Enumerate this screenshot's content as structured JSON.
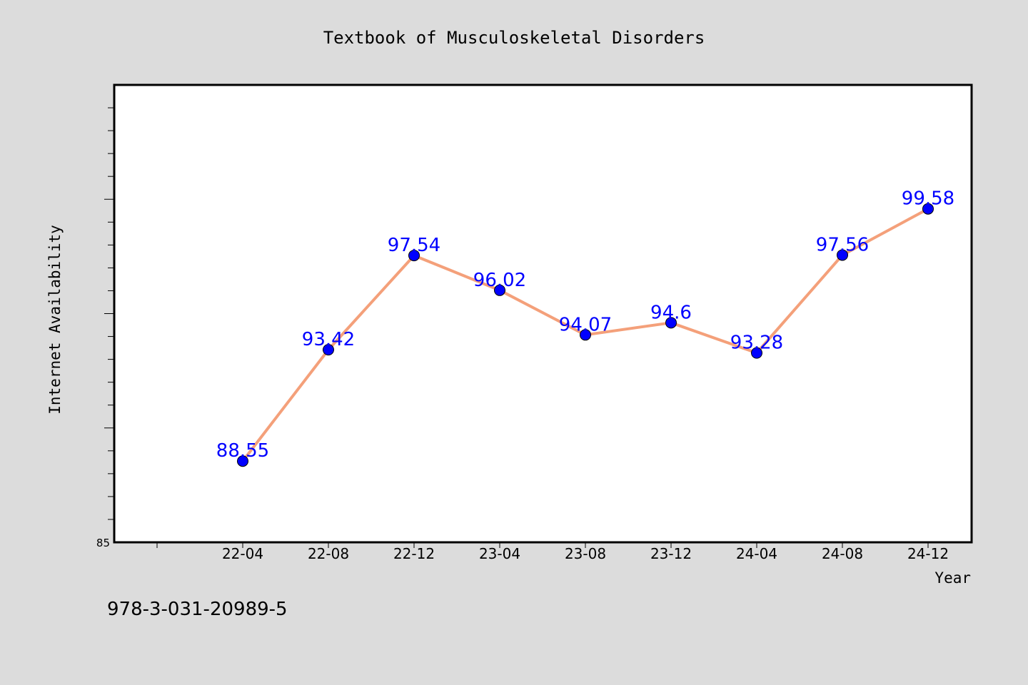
{
  "chart_data": {
    "type": "line",
    "title": "Textbook of Musculoskeletal Disorders",
    "xlabel": "Year",
    "ylabel": "Internet Availability",
    "categories": [
      "22-04",
      "22-08",
      "22-12",
      "23-04",
      "23-08",
      "23-12",
      "24-04",
      "24-08",
      "24-12"
    ],
    "series": [
      {
        "values": [
          88.55,
          93.42,
          97.54,
          96.02,
          94.07,
          94.6,
          93.28,
          97.56,
          99.58
        ],
        "labels": [
          "88.55",
          "93.42",
          "97.54",
          "96.02",
          "94.07",
          "94.6",
          "93.28",
          "97.56",
          "99.58"
        ]
      }
    ],
    "y_tick_labels": [
      "85"
    ],
    "ylim": [
      85,
      105
    ],
    "grid": false,
    "colors": {
      "line": "#f4a07a",
      "marker": "#0000ff",
      "data_label": "#0000ff",
      "plot_background": "#ffffff",
      "figure_background": "#dcdcdc"
    }
  },
  "footer": {
    "isbn": "978-3-031-20989-5"
  }
}
